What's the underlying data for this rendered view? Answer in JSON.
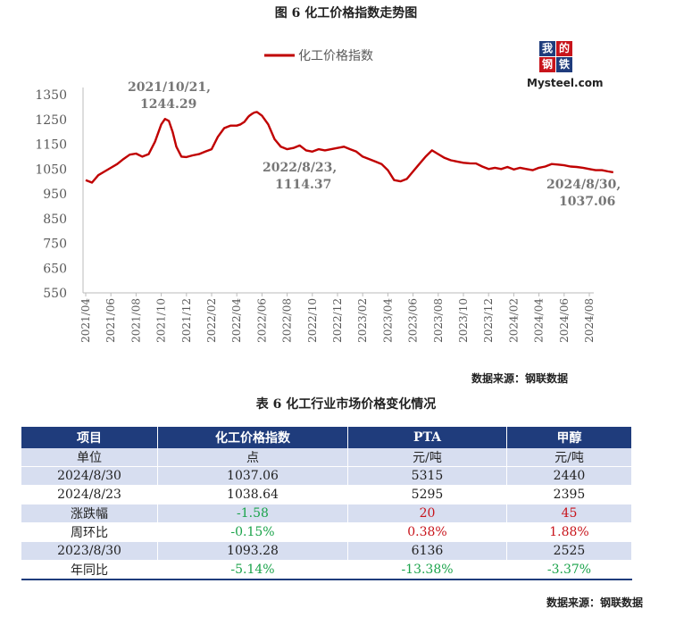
{
  "figure_title": "图 6 化工价格指数走势图",
  "logo": {
    "tiles": [
      "我",
      "的",
      "钢",
      "铁"
    ],
    "tile_colors": [
      "#1f3c7c",
      "#c8141b",
      "#c8141b",
      "#1f3c7c"
    ],
    "text": "Mysteel.com"
  },
  "chart_data": {
    "type": "line",
    "title": "",
    "ylim": [
      550,
      1350
    ],
    "y_ticks": [
      "1350",
      "1250",
      "1150",
      "1050",
      "950",
      "850",
      "750",
      "650",
      "550"
    ],
    "x_ticks": [
      "2021/04",
      "2021/06",
      "2021/08",
      "2021/10",
      "2021/12",
      "2022/02",
      "2022/04",
      "2022/06",
      "2022/08",
      "2022/10",
      "2022/12",
      "2023/02",
      "2023/04",
      "2023/06",
      "2023/08",
      "2023/10",
      "2023/12",
      "2024/02",
      "2024/04",
      "2024/06",
      "2024/08"
    ],
    "series": [
      {
        "name": "化工价格指数",
        "color": "#c00000",
        "x": [
          0,
          0.5,
          1,
          1.5,
          2,
          2.5,
          3,
          3.5,
          4,
          4.5,
          5,
          5.5,
          6,
          6.3,
          6.6,
          6.9,
          7.2,
          7.6,
          8,
          8.5,
          9,
          9.5,
          10,
          10.5,
          11,
          11.5,
          12,
          12.3,
          12.6,
          12.9,
          13,
          13.2,
          13.4,
          13.6,
          14,
          14.5,
          15,
          15.5,
          16,
          16.5,
          17,
          17.5,
          18,
          18.5,
          19,
          19.5,
          20,
          20.5,
          21,
          21.5,
          22,
          22.5,
          23,
          23.5,
          24,
          24.5,
          25,
          25.5,
          26,
          26.5,
          27,
          27.5,
          28,
          28.5,
          29,
          29.5,
          30,
          30.5,
          31,
          31.5,
          32,
          32.5,
          33,
          33.5,
          34,
          34.5,
          35,
          35.5,
          36,
          36.5,
          37,
          37.5,
          38,
          38.5,
          39,
          39.5,
          40,
          40.5,
          41,
          41.5,
          41.9
        ],
        "values": [
          1005,
          995,
          1025,
          1040,
          1055,
          1070,
          1090,
          1108,
          1112,
          1100,
          1110,
          1160,
          1230,
          1252,
          1244,
          1200,
          1140,
          1100,
          1098,
          1105,
          1110,
          1120,
          1130,
          1180,
          1215,
          1225,
          1225,
          1230,
          1240,
          1260,
          1265,
          1272,
          1278,
          1280,
          1265,
          1230,
          1170,
          1140,
          1130,
          1135,
          1145,
          1125,
          1120,
          1130,
          1125,
          1130,
          1135,
          1140,
          1130,
          1120,
          1100,
          1090,
          1080,
          1070,
          1045,
          1005,
          1000,
          1010,
          1040,
          1070,
          1100,
          1125,
          1110,
          1095,
          1085,
          1080,
          1075,
          1073,
          1072,
          1060,
          1050,
          1055,
          1050,
          1058,
          1048,
          1055,
          1050,
          1045,
          1055,
          1060,
          1070,
          1068,
          1065,
          1060,
          1058,
          1055,
          1050,
          1045,
          1045,
          1040,
          1037
        ]
      }
    ],
    "annotations": [
      {
        "label": "2021/10/21,",
        "value": "1244.29"
      },
      {
        "label": "2022/8/23,",
        "value": "1114.37"
      },
      {
        "label": "2024/8/30,",
        "value": "1037.06"
      }
    ]
  },
  "chart_source": "数据来源：钢联数据",
  "table_title": "表 6 化工行业市场价格变化情况",
  "table": {
    "headers": [
      "项目",
      "化工价格指数",
      "PTA",
      "甲醇"
    ],
    "rows": [
      {
        "shade": true,
        "cells": [
          {
            "text": "单位"
          },
          {
            "text": "点"
          },
          {
            "text": "元/吨"
          },
          {
            "text": "元/吨"
          }
        ]
      },
      {
        "shade": true,
        "cells": [
          {
            "text": "2024/8/30"
          },
          {
            "text": "1037.06"
          },
          {
            "text": "5315"
          },
          {
            "text": "2440"
          }
        ]
      },
      {
        "shade": false,
        "cells": [
          {
            "text": "2024/8/23"
          },
          {
            "text": "1038.64"
          },
          {
            "text": "5295"
          },
          {
            "text": "2395"
          }
        ]
      },
      {
        "shade": true,
        "cells": [
          {
            "text": "涨跌幅"
          },
          {
            "text": "-1.58",
            "color": "green"
          },
          {
            "text": "20",
            "color": "red"
          },
          {
            "text": "45",
            "color": "red"
          }
        ]
      },
      {
        "shade": false,
        "cells": [
          {
            "text": "周环比"
          },
          {
            "text": "-0.15%",
            "color": "green"
          },
          {
            "text": "0.38%",
            "color": "red"
          },
          {
            "text": "1.88%",
            "color": "red"
          }
        ]
      },
      {
        "shade": true,
        "cells": [
          {
            "text": "2023/8/30"
          },
          {
            "text": "1093.28"
          },
          {
            "text": "6136"
          },
          {
            "text": "2525"
          }
        ]
      },
      {
        "shade": false,
        "cells": [
          {
            "text": "年同比"
          },
          {
            "text": "-5.14%",
            "color": "green"
          },
          {
            "text": "-13.38%",
            "color": "green"
          },
          {
            "text": "-3.37%",
            "color": "green"
          }
        ]
      }
    ]
  },
  "table_source": "数据来源：钢联数据"
}
